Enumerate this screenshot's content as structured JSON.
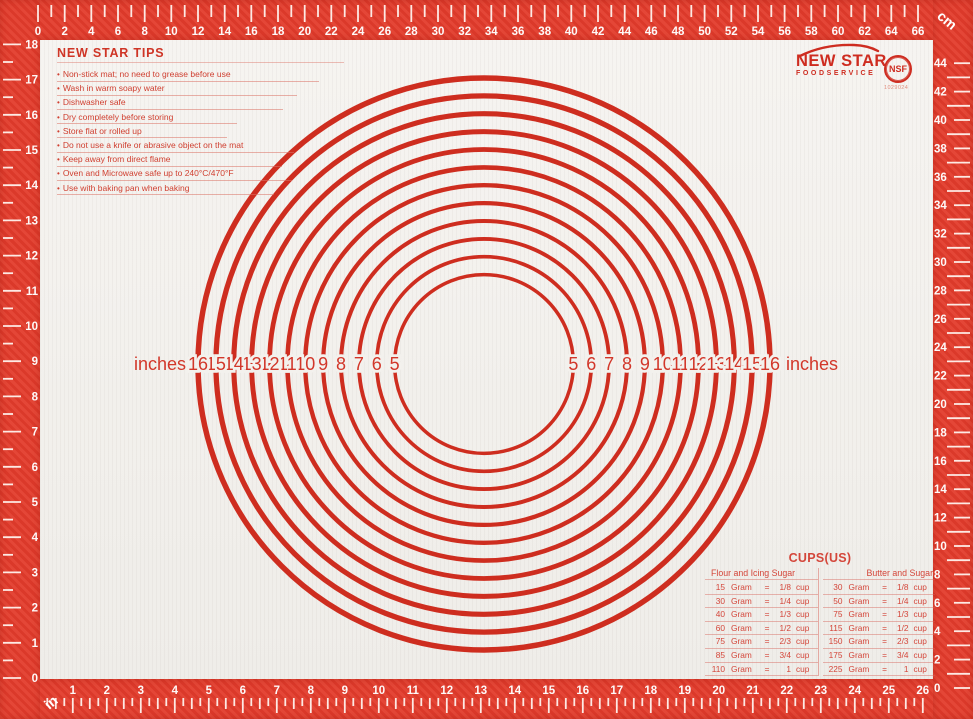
{
  "tips": {
    "title": "NEW STAR TIPS",
    "items": [
      "Non-stick mat; no need to grease before use",
      "Wash in warm soapy water",
      "Dishwasher safe",
      "Dry completely before storing",
      "Store flat or rolled up",
      "Do not use a knife or abrasive object on the mat",
      "Keep away from direct flame",
      "Oven and Microwave safe up to 240°C/470°F",
      "Use with baking pan when baking"
    ]
  },
  "brand": {
    "name": "NEW STAR",
    "subtitle": "FOODSERVICE",
    "nsf_label": "NSF",
    "nsf_number": "1029024"
  },
  "circles": {
    "unit_label": "inches",
    "sizes_in": [
      5,
      6,
      7,
      8,
      9,
      10,
      11,
      12,
      13,
      14,
      15,
      16
    ]
  },
  "cups": {
    "title": "CUPS(US)",
    "gram_word": "Gram",
    "eq": "=",
    "cup_word": "cup",
    "columns": [
      {
        "header": "Flour and Icing Sugar",
        "rows": [
          [
            "15",
            "1/8"
          ],
          [
            "30",
            "1/4"
          ],
          [
            "40",
            "1/3"
          ],
          [
            "60",
            "1/2"
          ],
          [
            "75",
            "2/3"
          ],
          [
            "85",
            "3/4"
          ],
          [
            "110",
            "1"
          ]
        ]
      },
      {
        "header": "Butter and Sugar",
        "rows": [
          [
            "30",
            "1/8"
          ],
          [
            "50",
            "1/4"
          ],
          [
            "75",
            "1/3"
          ],
          [
            "115",
            "1/2"
          ],
          [
            "150",
            "2/3"
          ],
          [
            "175",
            "3/4"
          ],
          [
            "225",
            "1"
          ]
        ]
      }
    ]
  },
  "rulers": {
    "top_unit": "cm",
    "bottom_unit": "in",
    "top_cm": [
      0,
      2,
      4,
      6,
      8,
      10,
      12,
      14,
      16,
      18,
      20,
      22,
      24,
      26,
      28,
      30,
      32,
      34,
      36,
      38,
      40,
      42,
      44,
      46,
      48,
      50,
      52,
      54,
      56,
      58,
      60,
      62,
      64,
      66
    ],
    "bottom_in": [
      1,
      2,
      3,
      4,
      5,
      6,
      7,
      8,
      9,
      10,
      11,
      12,
      13,
      14,
      15,
      16,
      17,
      18,
      19,
      20,
      21,
      22,
      23,
      24,
      25,
      26
    ],
    "left_in": [
      0,
      1,
      2,
      3,
      4,
      5,
      6,
      7,
      8,
      9,
      10,
      11,
      12,
      13,
      14,
      15,
      16,
      17,
      18
    ],
    "right_cm": [
      0,
      2,
      4,
      6,
      8,
      10,
      12,
      14,
      16,
      18,
      20,
      22,
      24,
      26,
      28,
      30,
      32,
      34,
      36,
      38,
      40,
      42,
      44
    ]
  },
  "colors": {
    "border_red": "#e23b2b",
    "line_red": "#ce2d1f",
    "text_red": "#d2372a",
    "mark_white": "#fff3ee",
    "mat": "#f3f1ed"
  }
}
